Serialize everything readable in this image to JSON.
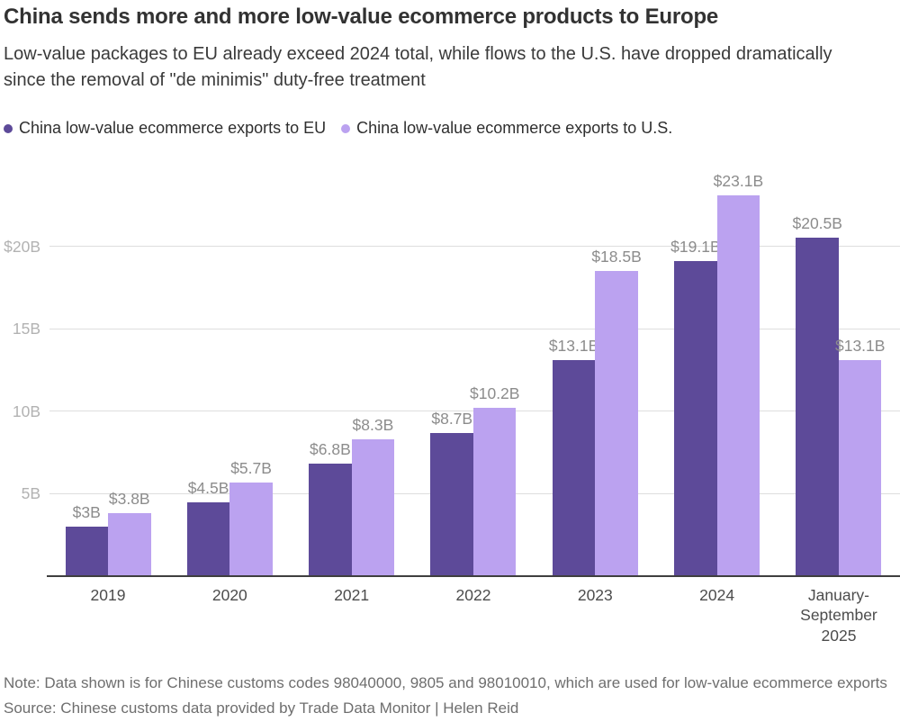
{
  "header": {
    "title": "China sends more and more low-value ecommerce products to Europe",
    "subtitle": "Low-value packages to EU already exceed 2024 total, while flows to the U.S. have dropped dramatically since the removal of \"de minimis\" duty-free treatment"
  },
  "legend": {
    "items": [
      {
        "label": "China low-value ecommerce exports to EU",
        "color": "#5d4a99"
      },
      {
        "label": "China low-value ecommerce exports to U.S.",
        "color": "#bba2f0"
      }
    ]
  },
  "chart_data": {
    "type": "bar",
    "title": "China sends more and more low-value ecommerce products to Europe",
    "xlabel": "",
    "ylabel": "",
    "grid": "horizontal",
    "legend_position": "top-left",
    "categories": [
      "2019",
      "2020",
      "2021",
      "2022",
      "2023",
      "2024",
      "January-\nSeptember\n2025"
    ],
    "series": [
      {
        "key": "eu",
        "name": "China low-value ecommerce exports to EU",
        "color": "#5d4a99",
        "values": [
          3,
          4.5,
          6.8,
          8.7,
          13.1,
          19.1,
          20.5
        ],
        "labels": [
          "$3B",
          "$4.5B",
          "$6.8B",
          "$8.7B",
          "$13.1B",
          "$19.1B",
          "$20.5B"
        ]
      },
      {
        "key": "us",
        "name": "China low-value ecommerce exports to U.S.",
        "color": "#bba2f0",
        "values": [
          3.8,
          5.7,
          8.3,
          10.2,
          18.5,
          23.1,
          13.1
        ],
        "labels": [
          "$3.8B",
          "$5.7B",
          "$8.3B",
          "$10.2B",
          "$18.5B",
          "$23.1B",
          "$13.1B"
        ]
      }
    ],
    "y_axis": {
      "unit": "billion USD",
      "ylim": [
        0,
        24
      ],
      "ticks": [
        {
          "value": 5,
          "label": "5B"
        },
        {
          "value": 10,
          "label": "10B"
        },
        {
          "value": 15,
          "label": "15B"
        },
        {
          "value": 20,
          "label": "$20B"
        }
      ]
    }
  },
  "footer": {
    "note": "Note: Data shown is for Chinese customs codes 98040000, 9805 and 98010010, which are used for low-value ecommerce exports",
    "source": "Source: Chinese customs data provided by Trade Data Monitor | Helen Reid"
  }
}
